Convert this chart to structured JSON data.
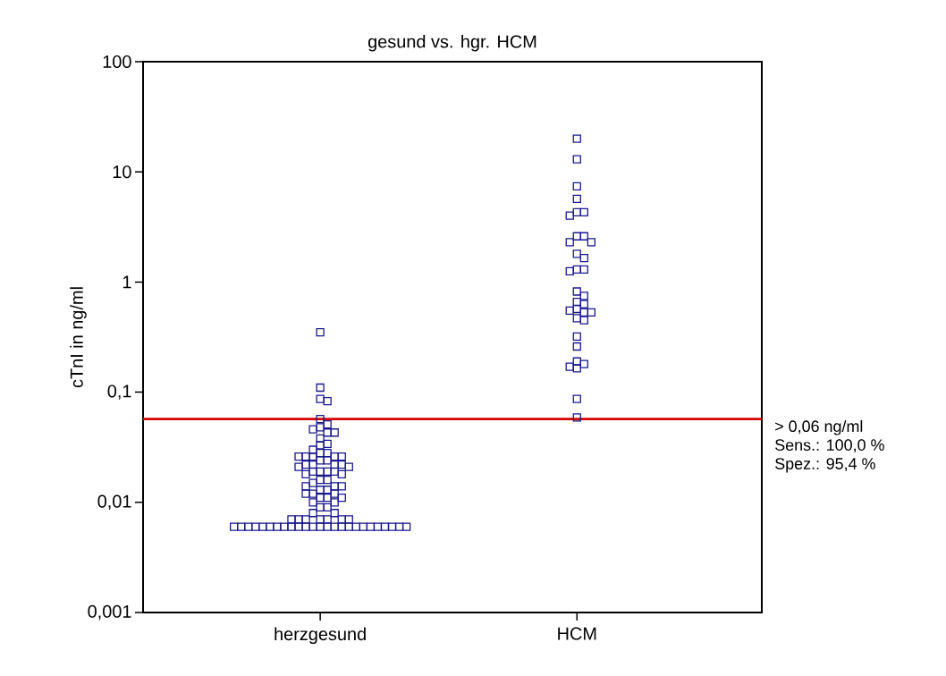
{
  "chart_data": {
    "type": "scatter",
    "title": "gesund vs. hgr. HCM",
    "ylabel": "cTnI in ng/ml",
    "categories": [
      "herzgesund",
      "HCM"
    ],
    "log": "y",
    "ylim": [
      0.001,
      100
    ],
    "yticks": [
      {
        "value": 0.001,
        "label": "0,001"
      },
      {
        "value": 0.01,
        "label": "0,01"
      },
      {
        "value": 0.1,
        "label": "0,1"
      },
      1,
      10,
      100
    ],
    "marker": "square",
    "grid": false,
    "series": [
      {
        "color": "#1a1a8c",
        "x": [
          "herzgesund",
          "herzgesund",
          "herzgesund",
          "herzgesund",
          "herzgesund",
          "herzgesund",
          "herzgesund",
          "herzgesund",
          "herzgesund",
          "herzgesund",
          "herzgesund",
          "herzgesund",
          "herzgesund",
          "herzgesund",
          "herzgesund",
          "herzgesund",
          "herzgesund",
          "herzgesund",
          "herzgesund",
          "herzgesund",
          "herzgesund",
          "herzgesund",
          "herzgesund",
          "herzgesund",
          "herzgesund",
          "herzgesund",
          "herzgesund",
          "herzgesund",
          "herzgesund",
          "herzgesund",
          "herzgesund",
          "herzgesund",
          "herzgesund",
          "herzgesund",
          "herzgesund",
          "herzgesund",
          "herzgesund",
          "herzgesund",
          "herzgesund",
          "herzgesund",
          "herzgesund",
          "herzgesund",
          "herzgesund",
          "herzgesund",
          "herzgesund",
          "herzgesund",
          "herzgesund",
          "herzgesund",
          "herzgesund",
          "herzgesund",
          "herzgesund",
          "herzgesund",
          "herzgesund",
          "herzgesund",
          "herzgesund",
          "herzgesund",
          "herzgesund",
          "herzgesund",
          "herzgesund",
          "herzgesund",
          "herzgesund",
          "herzgesund",
          "herzgesund",
          "herzgesund",
          "herzgesund",
          "herzgesund",
          "herzgesund",
          "herzgesund",
          "herzgesund",
          "herzgesund",
          "herzgesund",
          "herzgesund",
          "herzgesund",
          "herzgesund",
          "herzgesund",
          "herzgesund",
          "herzgesund",
          "herzgesund",
          "herzgesund",
          "herzgesund",
          "herzgesund",
          "herzgesund",
          "herzgesund",
          "herzgesund",
          "herzgesund",
          "herzgesund",
          "herzgesund"
        ],
        "values": [
          0.35,
          0.11,
          0.087,
          0.083,
          0.057,
          0.051,
          0.048,
          0.046,
          0.043,
          0.043,
          0.038,
          0.034,
          0.033,
          0.03,
          0.028,
          0.028,
          0.026,
          0.026,
          0.026,
          0.026,
          0.026,
          0.024,
          0.024,
          0.022,
          0.022,
          0.022,
          0.022,
          0.021,
          0.021,
          0.019,
          0.019,
          0.019,
          0.019,
          0.018,
          0.018,
          0.016,
          0.016,
          0.015,
          0.014,
          0.014,
          0.014,
          0.013,
          0.013,
          0.012,
          0.012,
          0.012,
          0.011,
          0.011,
          0.011,
          0.01,
          0.01,
          0.009,
          0.009,
          0.008,
          0.008,
          0.007,
          0.007,
          0.007,
          0.007,
          0.007,
          0.007,
          0.007,
          0.006,
          0.006,
          0.006,
          0.006,
          0.006,
          0.006,
          0.006,
          0.006,
          0.006,
          0.006,
          0.006,
          0.006,
          0.006,
          0.006,
          0.006,
          0.006,
          0.006,
          0.006,
          0.006,
          0.006,
          0.006,
          0.006,
          0.006,
          0.006,
          0.006
        ]
      },
      {
        "color": "#1a1a8c",
        "x": [
          "HCM",
          "HCM",
          "HCM",
          "HCM",
          "HCM",
          "HCM",
          "HCM",
          "HCM",
          "HCM",
          "HCM",
          "HCM",
          "HCM",
          "HCM",
          "HCM",
          "HCM",
          "HCM",
          "HCM",
          "HCM",
          "HCM",
          "HCM",
          "HCM",
          "HCM",
          "HCM",
          "HCM",
          "HCM",
          "HCM",
          "HCM",
          "HCM",
          "HCM",
          "HCM",
          "HCM",
          "HCM",
          "HCM",
          "HCM"
        ],
        "values": [
          20,
          13,
          7.4,
          5.7,
          4.3,
          4.3,
          4.0,
          2.6,
          2.6,
          2.3,
          2.3,
          1.8,
          1.65,
          1.3,
          1.3,
          1.25,
          0.82,
          0.75,
          0.66,
          0.63,
          0.57,
          0.55,
          0.53,
          0.53,
          0.47,
          0.45,
          0.32,
          0.26,
          0.19,
          0.18,
          0.17,
          0.165,
          0.087,
          0.059
        ]
      }
    ],
    "ref_lines": [
      {
        "axis": "y",
        "value": 0.057,
        "label": "> 0,06 ng/ml",
        "color": "#d40000",
        "line_style": "solid"
      }
    ],
    "annotations": [
      "Sens.: 100,0 %",
      "Spez.: 95,4 %"
    ]
  }
}
